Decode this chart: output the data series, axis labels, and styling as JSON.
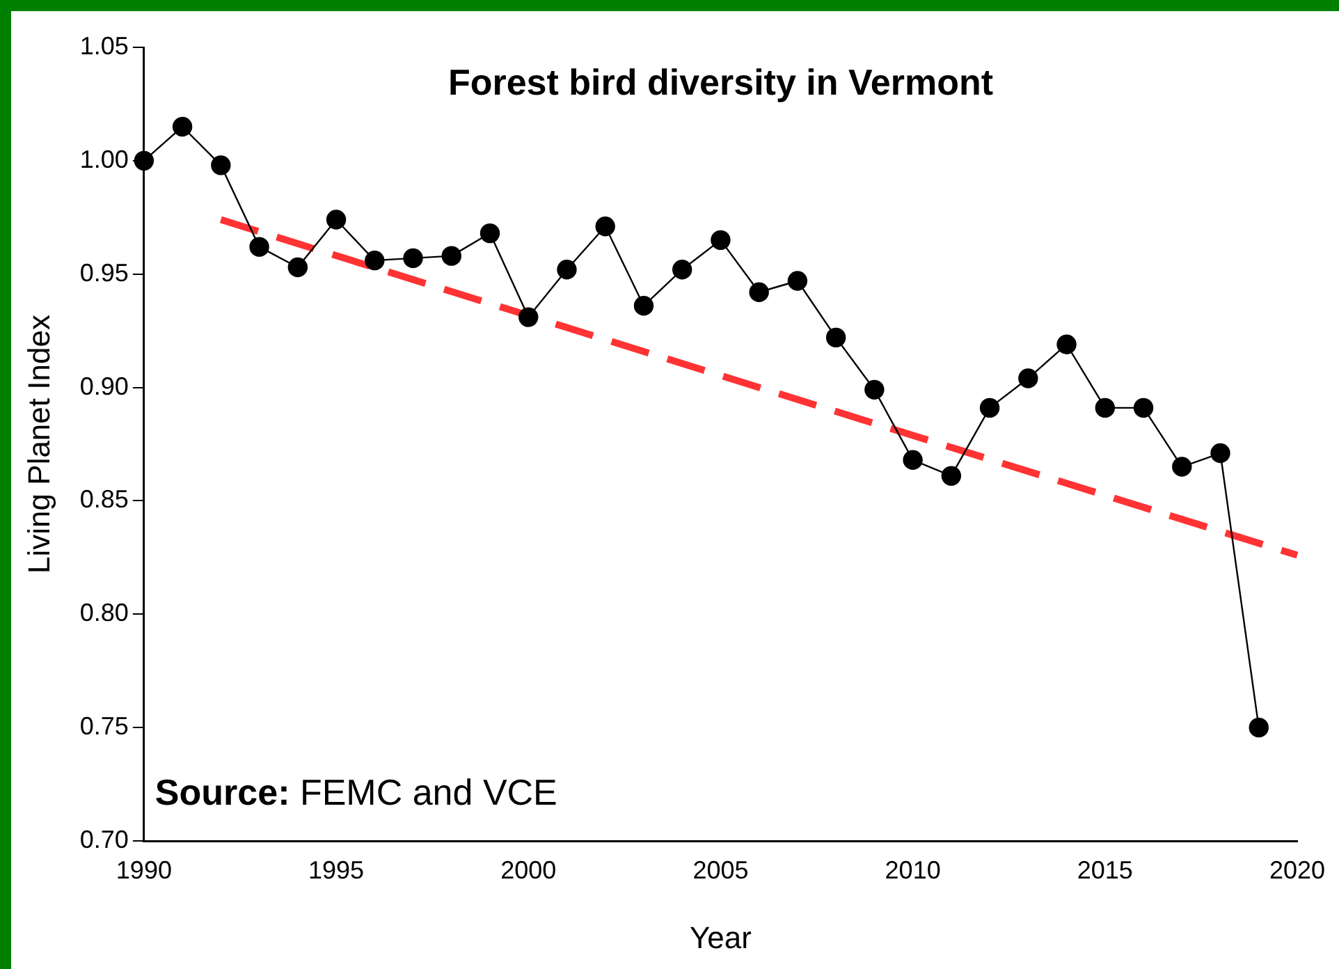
{
  "chart_data": {
    "type": "line",
    "title": "Forest bird diversity in Vermont",
    "xlabel": "Year",
    "ylabel": "Living Planet Index",
    "annotations": [
      "Source: FEMC and VCE"
    ],
    "x": [
      1990,
      1991,
      1992,
      1993,
      1994,
      1995,
      1996,
      1997,
      1998,
      1999,
      2000,
      2001,
      2002,
      2003,
      2004,
      2005,
      2006,
      2007,
      2008,
      2009,
      2010,
      2011,
      2012,
      2013,
      2014,
      2015,
      2016,
      2017,
      2018,
      2019
    ],
    "series": [
      {
        "type": "line",
        "color": "#000000",
        "marker": "circle",
        "line_style": "solid",
        "values": [
          1.0,
          1.015,
          0.998,
          0.962,
          0.953,
          0.974,
          0.956,
          0.957,
          0.958,
          0.968,
          0.931,
          0.952,
          0.971,
          0.936,
          0.952,
          0.965,
          0.942,
          0.947,
          0.922,
          0.899,
          0.868,
          0.861,
          0.891,
          0.904,
          0.919,
          0.891,
          0.891,
          0.865,
          0.871,
          0.75
        ]
      },
      {
        "type": "line",
        "color": "#ff3333",
        "marker": "none",
        "line_style": "dashed",
        "x": [
          1992,
          2020
        ],
        "values": [
          0.974,
          0.826
        ]
      }
    ],
    "xlim": [
      1990,
      2020
    ],
    "xticks": [
      1990,
      1995,
      2000,
      2005,
      2010,
      2015,
      2020
    ],
    "ylim": [
      0.7,
      1.05
    ],
    "yticks": [
      {
        "value": 0.7,
        "label": "0.70"
      },
      {
        "value": 0.75,
        "label": "0.75"
      },
      {
        "value": 0.8,
        "label": "0.80"
      },
      {
        "value": 0.85,
        "label": "0.85"
      },
      {
        "value": 0.9,
        "label": "0.90"
      },
      {
        "value": 0.95,
        "label": "0.95"
      },
      {
        "value": 1.0,
        "label": "1.00"
      },
      {
        "value": 1.05,
        "label": "1.05"
      }
    ],
    "grid": false,
    "legend": false
  }
}
